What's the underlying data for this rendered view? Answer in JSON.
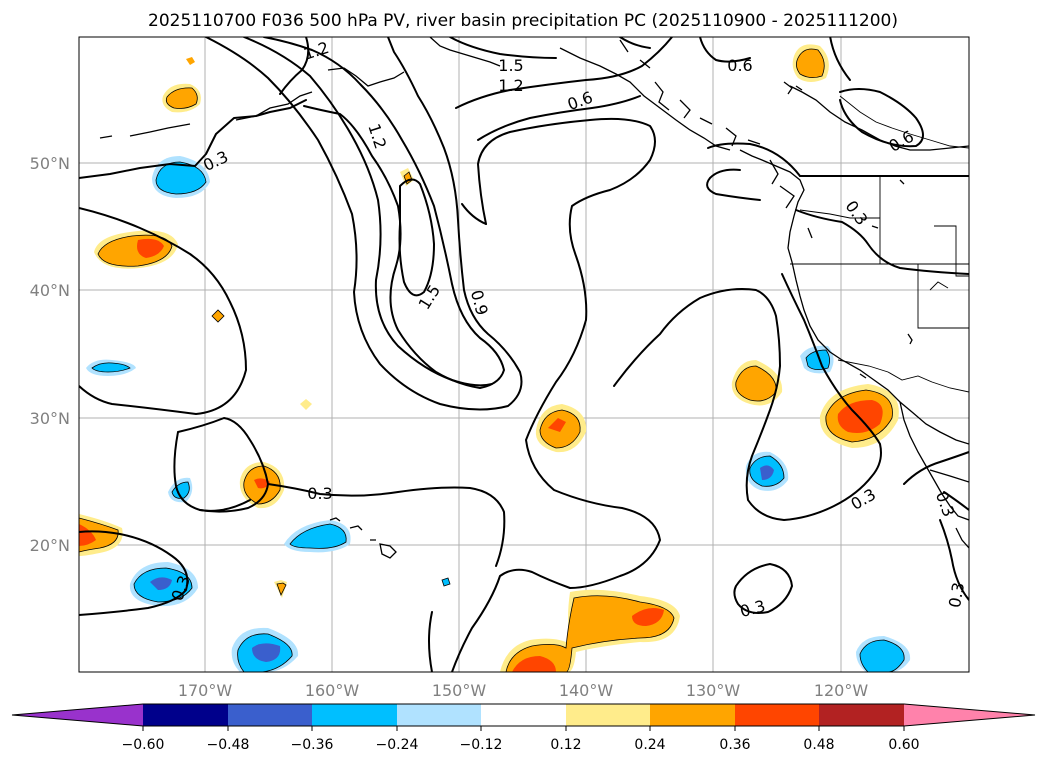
{
  "title": "2025110700 F036 500 hPa PV, river basin precipitation PC (2025110900 - 2025111200)",
  "lat_labels": [
    "50°N",
    "40°N",
    "30°N",
    "20°N"
  ],
  "lon_labels": [
    "170°W",
    "160°W",
    "150°W",
    "140°W",
    "130°W",
    "120°W"
  ],
  "contour_labels": {
    "c1_2a": "1.2",
    "c1_5a": "1.5",
    "c1_2b": "1.2",
    "c0_6a": "0.6",
    "c0_6b": "0.6",
    "c0_6c": "0.6",
    "c1_2c": "1.2",
    "c0_3a": "0.3",
    "c0_3b": "0.3",
    "c1_5b": "1.5",
    "c0_9": "0.9",
    "c0_3c": "0.3",
    "c0_3d": "0.3",
    "c0_3e": "0.3",
    "c0_3f": "0.3",
    "c0_3g": "0.3",
    "c0_3h": "0.3"
  },
  "colorbar": {
    "ticks": [
      "−0.60",
      "−0.48",
      "−0.36",
      "−0.24",
      "−0.12",
      "0.12",
      "0.24",
      "0.36",
      "0.48",
      "0.60"
    ],
    "colors": {
      "under": "#9932CC",
      "n060": "#00008B",
      "n048": "#3A5FCD",
      "n036": "#00BFFF",
      "n024": "#B0E2FF",
      "neutral": "#FFFFFF",
      "p012": "#FFEC8B",
      "p024": "#FFA500",
      "p036": "#FF4500",
      "p048": "#B22222",
      "over": "#FF82AB"
    }
  }
}
